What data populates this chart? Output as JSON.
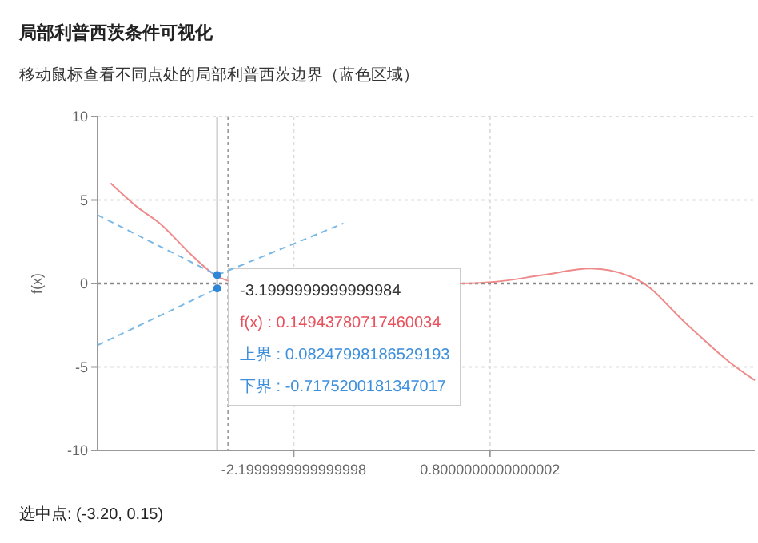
{
  "chart_data": {
    "type": "line",
    "title": "局部利普西茨条件可视化",
    "subtitle": "移动鼠标查看不同点处的局部利普西茨边界（蓝色区域）",
    "ylabel": "f(x)",
    "xlim": [
      -5.2,
      4.85
    ],
    "xticks": [
      {
        "value": -2.2,
        "label": "-2.1999999999999998"
      },
      {
        "value": 0.8,
        "label": "0.8000000000000002"
      }
    ],
    "ylim": [
      -10,
      10
    ],
    "yticks": [
      -10,
      -5,
      0,
      5,
      10
    ],
    "grid": true,
    "tick_labels": true,
    "series": [
      {
        "color": "#ee8a8a",
        "line_style": "solid",
        "x": [
          -5,
          -4.6,
          -4.25,
          -3.76,
          -3.4,
          -3.2,
          -1.5,
          0.34,
          0.87,
          1.6,
          2.34,
          3.07,
          3.8,
          4.46,
          4.85
        ],
        "values": [
          6,
          4.6,
          3.6,
          1.7,
          0.5,
          0.15,
          null,
          0,
          0.1,
          0.5,
          0.9,
          0.2,
          -2.4,
          -4.7,
          -5.8
        ]
      },
      {
        "type": "line",
        "color": "#7ab8e6",
        "line_style": "dashed",
        "x": [
          -5.2,
          -3.37,
          -1.44
        ],
        "values": [
          4.1,
          0.5,
          3.6
        ]
      },
      {
        "type": "line",
        "color": "#7ab8e6",
        "line_style": "dashed",
        "x": [
          -5.2,
          -3.37
        ],
        "values": [
          -3.7,
          -0.3
        ]
      },
      {
        "type": "scatter",
        "color": "#2f86d6",
        "marker": "circle",
        "x": [
          -3.37,
          -3.37
        ],
        "values": [
          0.5,
          -0.3
        ]
      }
    ],
    "ref_lines": [
      {
        "axis": "x",
        "value": -3.37,
        "color": "#cccccc",
        "line_style": "solid"
      },
      {
        "axis": "x",
        "value": -3.2,
        "color": "#999999",
        "line_style": "dotted"
      },
      {
        "axis": "y",
        "value": 0,
        "color": "#888888",
        "line_style": "dotted"
      }
    ],
    "annotations": [
      "-3.1999999999999984",
      "f(x) : 0.14943780717460034",
      "上界 : 0.08247998186529193",
      "下界 : -0.7175200181347017",
      "选中点: (-3.20, 0.15)"
    ]
  }
}
